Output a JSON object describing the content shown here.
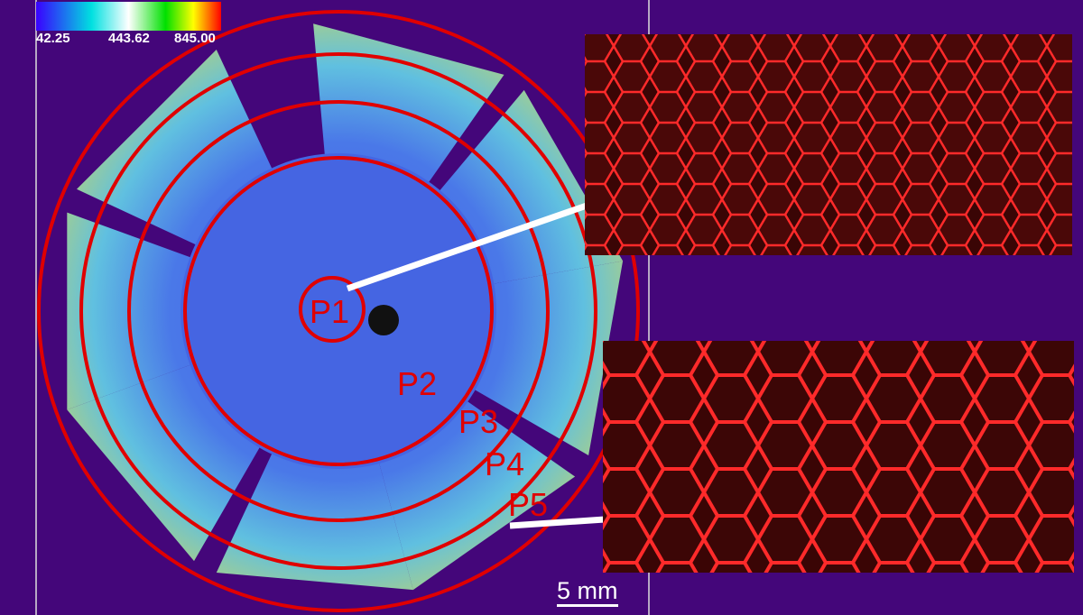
{
  "colorbar": {
    "min_label": "42.25",
    "mid_label": "443.62",
    "max_label": "845.00",
    "colors": [
      "#3a00ff",
      "#00e0e0",
      "#ffffff",
      "#00e000",
      "#ffff00",
      "#ff0000"
    ]
  },
  "regions": [
    {
      "label": "P1"
    },
    {
      "label": "P2"
    },
    {
      "label": "P3"
    },
    {
      "label": "P4"
    },
    {
      "label": "P5"
    }
  ],
  "scale_bar": {
    "label": "5 mm"
  },
  "colors": {
    "background": "#44067a",
    "rings": "#e00000",
    "cells": "#ff2020",
    "connector": "#ffffff"
  }
}
